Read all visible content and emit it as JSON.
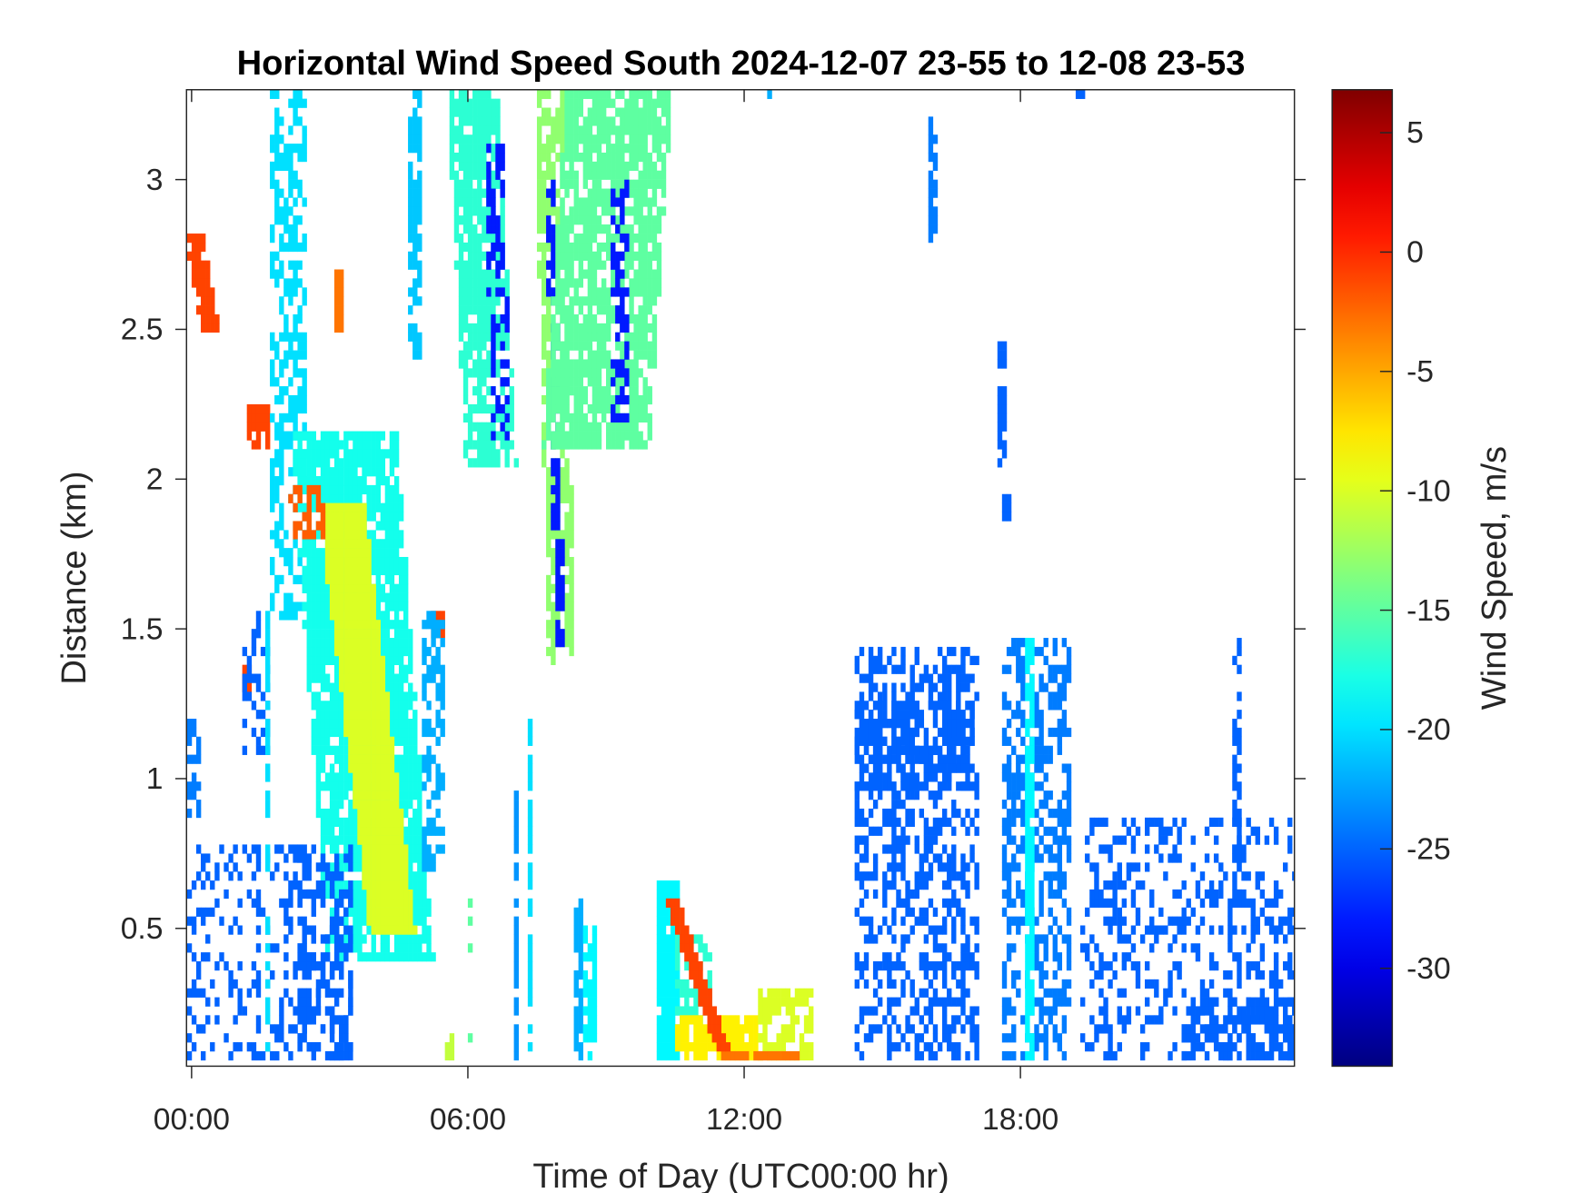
{
  "chart_data": {
    "type": "heatmap",
    "title": "Horizontal Wind Speed South 2024-12-07 23-55 to 12-08 23-53",
    "xlabel": "Time of Day (UTC00:00 hr)",
    "ylabel": "Distance (km)",
    "colorbar_label": "Wind Speed, m/s",
    "colormap": "jet",
    "xlim": [
      -0.11,
      23.95
    ],
    "ylim": [
      0.04,
      3.3
    ],
    "clim": [
      -34.1,
      6.8
    ],
    "x_ticks": [
      {
        "value": 0,
        "label": "00:00"
      },
      {
        "value": 6,
        "label": "06:00"
      },
      {
        "value": 12,
        "label": "12:00"
      },
      {
        "value": 18,
        "label": "18:00"
      }
    ],
    "y_ticks": [
      {
        "value": 0.5,
        "label": "0.5"
      },
      {
        "value": 1,
        "label": "1"
      },
      {
        "value": 1.5,
        "label": "1.5"
      },
      {
        "value": 2,
        "label": "2"
      },
      {
        "value": 2.5,
        "label": "2.5"
      },
      {
        "value": 3,
        "label": "3"
      }
    ],
    "colorbar_ticks": [
      {
        "value": 5,
        "label": "5"
      },
      {
        "value": 0,
        "label": "0"
      },
      {
        "value": -5,
        "label": "-5"
      },
      {
        "value": -10,
        "label": "-10"
      },
      {
        "value": -15,
        "label": "-15"
      },
      {
        "value": -20,
        "label": "-20"
      },
      {
        "value": -25,
        "label": "-25"
      },
      {
        "value": -30,
        "label": "-30"
      }
    ],
    "grid": false,
    "cell_size": {
      "hours": 0.1,
      "km": 0.03
    },
    "patch_fields": [
      "t_start_h",
      "t_end_h",
      "d_start_km",
      "d_end_km",
      "wind_speed_ms",
      "coverage",
      "t_shift_at_bottom_h"
    ],
    "patches": [
      [
        -0.1,
        0.2,
        2.5,
        2.8,
        -1,
        0.95,
        0.35
      ],
      [
        1.2,
        1.6,
        2.1,
        2.24,
        -1,
        0.9,
        0.1
      ],
      [
        1.15,
        1.3,
        1.3,
        1.36,
        -1,
        1,
        0
      ],
      [
        1.7,
        2.5,
        1.55,
        3.3,
        -20,
        0.55,
        0
      ],
      [
        2.2,
        4.4,
        0.4,
        2.15,
        -18,
        0.85,
        0.8
      ],
      [
        2.8,
        3.7,
        0.5,
        1.9,
        -10,
        1,
        1.1
      ],
      [
        2.1,
        2.9,
        1.8,
        1.97,
        -2,
        0.6,
        0
      ],
      [
        3.1,
        3.25,
        2.5,
        2.68,
        -3,
        1,
        0
      ],
      [
        5.3,
        5.45,
        1.48,
        1.56,
        -1,
        1,
        0
      ],
      [
        4.8,
        5.0,
        2.4,
        3.3,
        -21,
        0.7,
        0
      ],
      [
        5.1,
        5.45,
        0.7,
        1.55,
        -22,
        0.6,
        0
      ],
      [
        5.6,
        6.6,
        2.05,
        3.3,
        -17,
        0.85,
        0.4
      ],
      [
        6.4,
        6.7,
        2.1,
        3.1,
        -28,
        0.5,
        0.2
      ],
      [
        7.5,
        8.0,
        1.4,
        3.3,
        -13,
        0.8,
        0.3
      ],
      [
        7.75,
        7.85,
        1.4,
        3.0,
        -28,
        0.7,
        0.2
      ],
      [
        8.2,
        10.4,
        2.1,
        3.3,
        -15,
        0.8,
        -0.5
      ],
      [
        9.2,
        9.5,
        2.2,
        3.0,
        -28,
        0.5,
        0
      ],
      [
        -0.1,
        3.5,
        0.04,
        0.78,
        -25,
        0.3,
        0
      ],
      [
        2.4,
        3.5,
        0.04,
        0.75,
        -25,
        0.55,
        0
      ],
      [
        -0.1,
        0.15,
        0.88,
        1.18,
        -24,
        0.6,
        0
      ],
      [
        1.15,
        1.7,
        1.08,
        1.55,
        -25,
        0.35,
        0
      ],
      [
        1.6,
        1.7,
        0.04,
        1.55,
        -20,
        0.7,
        0
      ],
      [
        7.0,
        7.1,
        0.04,
        0.95,
        -23,
        0.8,
        0
      ],
      [
        7.3,
        7.4,
        0.04,
        1.2,
        -20,
        0.7,
        0
      ],
      [
        8.35,
        8.45,
        0.04,
        0.6,
        -22,
        0.8,
        0
      ],
      [
        8.6,
        8.75,
        0.04,
        0.5,
        -19,
        0.7,
        0
      ],
      [
        5.55,
        5.7,
        0.04,
        0.15,
        -11,
        0.9,
        0
      ],
      [
        6.0,
        6.1,
        0.04,
        0.6,
        -15,
        0.45,
        0
      ],
      [
        10.15,
        10.6,
        0.04,
        0.65,
        -19,
        0.95,
        0
      ],
      [
        10.6,
        11.3,
        0.2,
        0.45,
        -17,
        0.6,
        0
      ],
      [
        10.5,
        12.4,
        0.04,
        0.2,
        -8,
        0.85,
        0
      ],
      [
        12.3,
        13.5,
        0.04,
        0.3,
        -10,
        0.75,
        0
      ],
      [
        11.5,
        13.2,
        0.04,
        0.08,
        -3,
        0.8,
        0
      ],
      [
        10.3,
        10.5,
        0.1,
        0.6,
        -1,
        1,
        1.1
      ],
      [
        14.4,
        17.1,
        0.04,
        1.42,
        -25,
        0.45,
        0
      ],
      [
        14.4,
        17.0,
        0.98,
        1.25,
        -25,
        0.75,
        0
      ],
      [
        17.6,
        19.1,
        0.04,
        1.45,
        -24,
        0.5,
        0
      ],
      [
        18.2,
        18.3,
        0.04,
        1.45,
        -19,
        0.9,
        0
      ],
      [
        19.4,
        23.95,
        0.04,
        0.85,
        -25,
        0.3,
        0
      ],
      [
        21.5,
        23.95,
        0.04,
        0.25,
        -25,
        0.7,
        0
      ],
      [
        22.6,
        22.75,
        0.5,
        1.45,
        -25,
        0.5,
        0
      ],
      [
        16.0,
        16.15,
        2.8,
        3.2,
        -24,
        0.7,
        0
      ],
      [
        17.5,
        17.7,
        2.05,
        2.45,
        -25,
        0.7,
        0
      ],
      [
        17.7,
        17.8,
        1.88,
        1.95,
        -25,
        1,
        0
      ],
      [
        12.5,
        12.6,
        3.27,
        3.3,
        -22,
        1,
        0
      ],
      [
        19.25,
        19.35,
        3.27,
        3.3,
        -25,
        1,
        0
      ]
    ]
  }
}
